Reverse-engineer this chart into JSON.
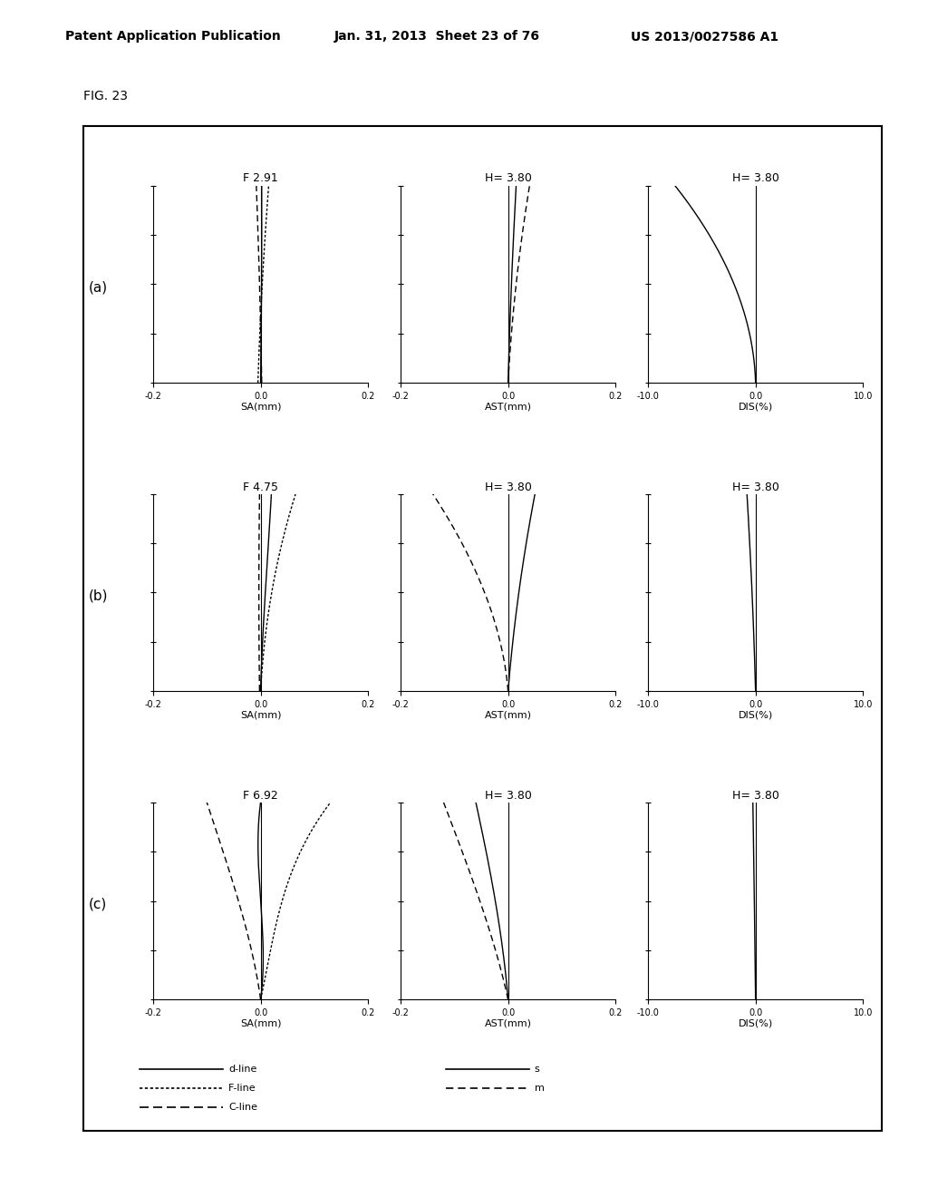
{
  "fig_label": "FIG. 23",
  "header_left": "Patent Application Publication",
  "header_center": "Jan. 31, 2013  Sheet 23 of 76",
  "header_right": "US 2013/0027586 A1",
  "rows": [
    "(a)",
    "(b)",
    "(c)"
  ],
  "row_titles_sa": [
    "F 2.91",
    "F 4.75",
    "F 6.92"
  ],
  "row_titles_ast": [
    "H= 3.80",
    "H= 3.80",
    "H= 3.80"
  ],
  "row_titles_dis": [
    "H= 3.80",
    "H= 3.80",
    "H= 3.80"
  ],
  "sa_xlim": [
    -0.2,
    0.2
  ],
  "ast_xlim": [
    -0.2,
    0.2
  ],
  "dis_xlim": [
    -10.0,
    10.0
  ],
  "ylim": [
    0.0,
    1.0
  ],
  "sa_xticks": [
    -0.2,
    0.0,
    0.2
  ],
  "ast_xticks": [
    -0.2,
    0.0,
    0.2
  ],
  "dis_xticks": [
    -10.0,
    0.0,
    10.0
  ],
  "xlabel_sa": "SA(mm)",
  "xlabel_ast": "AST(mm)",
  "xlabel_dis": "DIS(%)",
  "background_color": "#ffffff",
  "font_size_title": 9,
  "font_size_label": 8,
  "font_size_tick": 7,
  "font_size_legend": 8,
  "font_size_header": 10,
  "font_size_fig_label": 10,
  "ytick_positions": [
    0.0,
    0.25,
    0.5,
    0.75,
    1.0
  ]
}
